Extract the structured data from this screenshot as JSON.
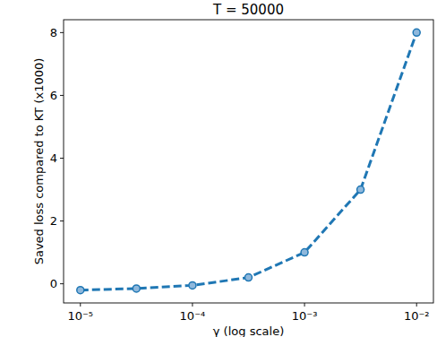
{
  "chart_data": {
    "type": "line",
    "title": "T = 50000",
    "x_label": "γ (log scale)",
    "y_label": "Saved loss compared to KT (x1000)",
    "x": [
      1e-05,
      3.16e-05,
      0.0001,
      0.000316,
      0.001,
      0.00316,
      0.01
    ],
    "values": [
      -0.2,
      -0.15,
      -0.05,
      0.2,
      1.0,
      3.0,
      8.0
    ],
    "color": "#1f77b4",
    "marker": "o",
    "line_style": "dashed",
    "log": "x",
    "grid": false,
    "xlim": [
      7.08e-06,
      0.01413
    ],
    "ylim": [
      -0.61,
      8.41
    ],
    "xticks": [
      {
        "value": 1e-05,
        "label": "10⁻⁵"
      },
      {
        "value": 0.0001,
        "label": "10⁻⁴"
      },
      {
        "value": 0.001,
        "label": "10⁻³"
      },
      {
        "value": 0.01,
        "label": "10⁻²"
      }
    ],
    "yticks": [
      0,
      2,
      4,
      6,
      8
    ]
  }
}
